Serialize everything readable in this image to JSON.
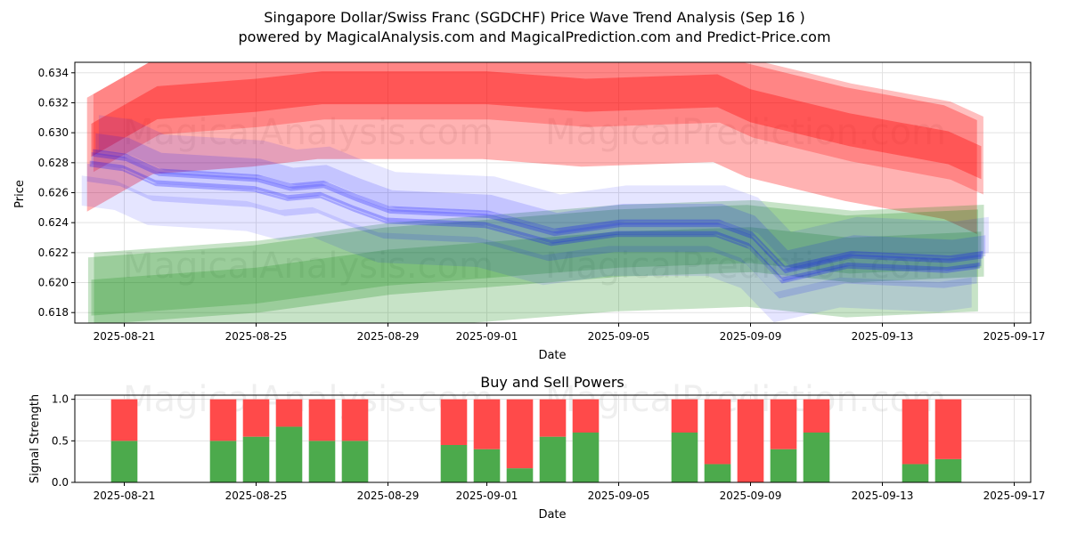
{
  "chart_data": [
    {
      "type": "area",
      "title": "Singapore Dollar/Swiss Franc (SGDCHF) Price Wave Trend Analysis (Sep 16 )",
      "subtitle": "powered by MagicalAnalysis.com and MagicalPrediction.com and Predict-Price.com",
      "xlabel": "Date",
      "ylabel": "Price",
      "ylim": [
        0.6173,
        0.6347
      ],
      "x_range": [
        "2025-08-19T12:00",
        "2025-09-17T12:00"
      ],
      "x_ticks": [
        "2025-08-21",
        "2025-08-25",
        "2025-08-29",
        "2025-09-01",
        "2025-09-05",
        "2025-09-09",
        "2025-09-13",
        "2025-09-17"
      ],
      "y_ticks": [
        "0.618",
        "0.620",
        "0.622",
        "0.624",
        "0.626",
        "0.628",
        "0.630",
        "0.632",
        "0.634"
      ],
      "grid": true,
      "watermark": [
        "MagicalAnalysis.com",
        "MagicalPrediction.com"
      ],
      "series": [
        {
          "name": "Upper wave (red)",
          "color": "#ff0000",
          "x": [
            "2025-08-20",
            "2025-08-22",
            "2025-08-25",
            "2025-08-27",
            "2025-09-01",
            "2025-09-04",
            "2025-09-08",
            "2025-09-09",
            "2025-09-12",
            "2025-09-15",
            "2025-09-16"
          ],
          "values": [
            0.6295,
            0.632,
            0.6325,
            0.633,
            0.633,
            0.6325,
            0.6328,
            0.6318,
            0.6302,
            0.629,
            0.628
          ]
        },
        {
          "name": "Lower wave (green)",
          "color": "#008000",
          "x": [
            "2025-08-20",
            "2025-08-25",
            "2025-08-29",
            "2025-09-01",
            "2025-09-05",
            "2025-09-09",
            "2025-09-12",
            "2025-09-16"
          ],
          "values": [
            0.619,
            0.6198,
            0.621,
            0.6215,
            0.6222,
            0.6225,
            0.6218,
            0.6222
          ]
        },
        {
          "name": "Price path (blue)",
          "color": "#0000ff",
          "x": [
            "2025-08-20",
            "2025-08-21",
            "2025-08-22",
            "2025-08-25",
            "2025-08-26",
            "2025-08-27",
            "2025-08-28",
            "2025-08-29",
            "2025-09-01",
            "2025-09-02",
            "2025-09-03",
            "2025-09-04",
            "2025-09-05",
            "2025-09-08",
            "2025-09-09",
            "2025-09-10",
            "2025-09-11",
            "2025-09-12",
            "2025-09-15",
            "2025-09-16"
          ],
          "values": [
            0.6283,
            0.628,
            0.627,
            0.6266,
            0.626,
            0.6262,
            0.6253,
            0.6245,
            0.6242,
            0.6236,
            0.623,
            0.6233,
            0.6236,
            0.6236,
            0.6228,
            0.6205,
            0.621,
            0.6215,
            0.6212,
            0.6215
          ]
        }
      ]
    },
    {
      "type": "bar",
      "title": "Buy and Sell Powers",
      "xlabel": "Date",
      "ylabel": "Signal Strength",
      "ylim": [
        0,
        1.05
      ],
      "x_ticks": [
        "2025-08-21",
        "2025-08-25",
        "2025-08-29",
        "2025-09-01",
        "2025-09-05",
        "2025-09-09",
        "2025-09-13",
        "2025-09-17"
      ],
      "y_ticks": [
        "0.0",
        "0.5",
        "1.0"
      ],
      "categories": [
        "2025-08-21",
        "2025-08-24",
        "2025-08-25",
        "2025-08-26",
        "2025-08-27",
        "2025-08-28",
        "2025-08-31",
        "2025-09-01",
        "2025-09-02",
        "2025-09-03",
        "2025-09-04",
        "2025-09-07",
        "2025-09-08",
        "2025-09-09",
        "2025-09-10",
        "2025-09-11",
        "2025-09-14",
        "2025-09-15"
      ],
      "series": [
        {
          "name": "Buy",
          "color": "#4caa4c",
          "values": [
            0.5,
            0.5,
            0.55,
            0.67,
            0.5,
            0.5,
            0.45,
            0.4,
            0.17,
            0.55,
            0.6,
            0.6,
            0.22,
            0.0,
            0.4,
            0.6,
            0.22,
            0.28
          ]
        },
        {
          "name": "Sell",
          "color": "#ff4a4a",
          "values": [
            0.5,
            0.5,
            0.45,
            0.33,
            0.5,
            0.5,
            0.55,
            0.6,
            0.83,
            0.45,
            0.4,
            0.4,
            0.78,
            1.0,
            0.6,
            0.4,
            0.78,
            0.72
          ]
        }
      ]
    }
  ]
}
